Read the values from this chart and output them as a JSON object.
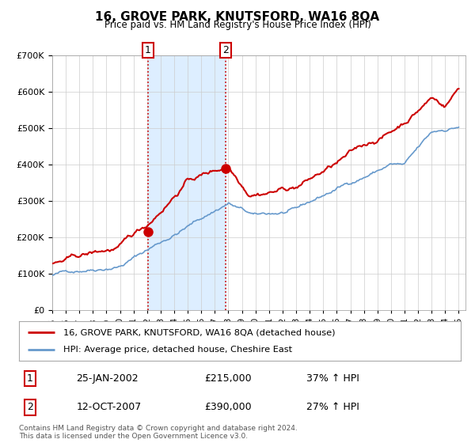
{
  "title": "16, GROVE PARK, KNUTSFORD, WA16 8QA",
  "subtitle": "Price paid vs. HM Land Registry's House Price Index (HPI)",
  "ylim": [
    0,
    700000
  ],
  "yticks": [
    0,
    100000,
    200000,
    300000,
    400000,
    500000,
    600000,
    700000
  ],
  "xlim_start": 1995.0,
  "xlim_end": 2025.5,
  "xtick_years": [
    1995,
    1996,
    1997,
    1998,
    1999,
    2000,
    2001,
    2002,
    2003,
    2004,
    2005,
    2006,
    2007,
    2008,
    2009,
    2010,
    2011,
    2012,
    2013,
    2014,
    2015,
    2016,
    2017,
    2018,
    2019,
    2020,
    2021,
    2022,
    2023,
    2024,
    2025
  ],
  "sale1_x": 2002.07,
  "sale1_y": 215000,
  "sale2_x": 2007.79,
  "sale2_y": 390000,
  "sale1_date": "25-JAN-2002",
  "sale1_price": "£215,000",
  "sale1_hpi": "37% ↑ HPI",
  "sale2_date": "12-OCT-2007",
  "sale2_price": "£390,000",
  "sale2_hpi": "27% ↑ HPI",
  "legend_line1": "16, GROVE PARK, KNUTSFORD, WA16 8QA (detached house)",
  "legend_line2": "HPI: Average price, detached house, Cheshire East",
  "footer1": "Contains HM Land Registry data © Crown copyright and database right 2024.",
  "footer2": "This data is licensed under the Open Government Licence v3.0.",
  "red_color": "#cc0000",
  "blue_color": "#6699cc",
  "shade_color": "#ddeeff",
  "background_color": "#ffffff",
  "grid_color": "#cccccc"
}
